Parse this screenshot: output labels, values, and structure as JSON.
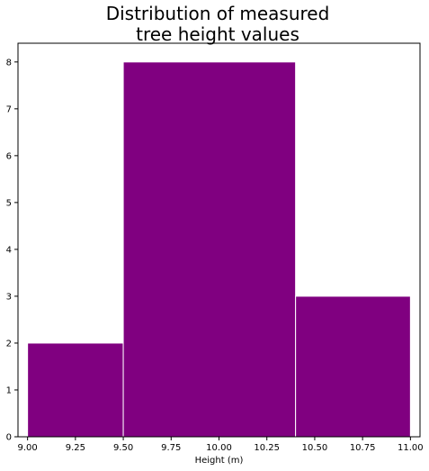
{
  "chart_data": {
    "type": "bar",
    "title": [
      "Distribution of measured",
      "tree height values"
    ],
    "xlabel": "Height (m)",
    "ylabel": "",
    "xlim": [
      8.95,
      11.05
    ],
    "ylim": [
      0,
      8.4
    ],
    "bins": [
      {
        "start": 9.0,
        "end": 9.5,
        "count": 2
      },
      {
        "start": 9.5,
        "end": 10.4,
        "count": 8
      },
      {
        "start": 10.4,
        "end": 11.0,
        "count": 3
      }
    ],
    "x_ticks": [
      {
        "value": 9.0,
        "label": "9.00"
      },
      {
        "value": 9.25,
        "label": "9.25"
      },
      {
        "value": 9.5,
        "label": "9.50"
      },
      {
        "value": 9.75,
        "label": "9.75"
      },
      {
        "value": 10.0,
        "label": "10.00"
      },
      {
        "value": 10.25,
        "label": "10.25"
      },
      {
        "value": 10.5,
        "label": "10.50"
      },
      {
        "value": 10.75,
        "label": "10.75"
      },
      {
        "value": 11.0,
        "label": "11.00"
      }
    ],
    "y_ticks": [
      {
        "value": 0,
        "label": "0"
      },
      {
        "value": 1,
        "label": "1"
      },
      {
        "value": 2,
        "label": "2"
      },
      {
        "value": 3,
        "label": "3"
      },
      {
        "value": 4,
        "label": "4"
      },
      {
        "value": 5,
        "label": "5"
      },
      {
        "value": 6,
        "label": "6"
      },
      {
        "value": 7,
        "label": "7"
      },
      {
        "value": 8,
        "label": "8"
      }
    ],
    "bar_color": "#800080",
    "bar_edge_color": "#ffffff",
    "grid": false,
    "legend": "none"
  }
}
